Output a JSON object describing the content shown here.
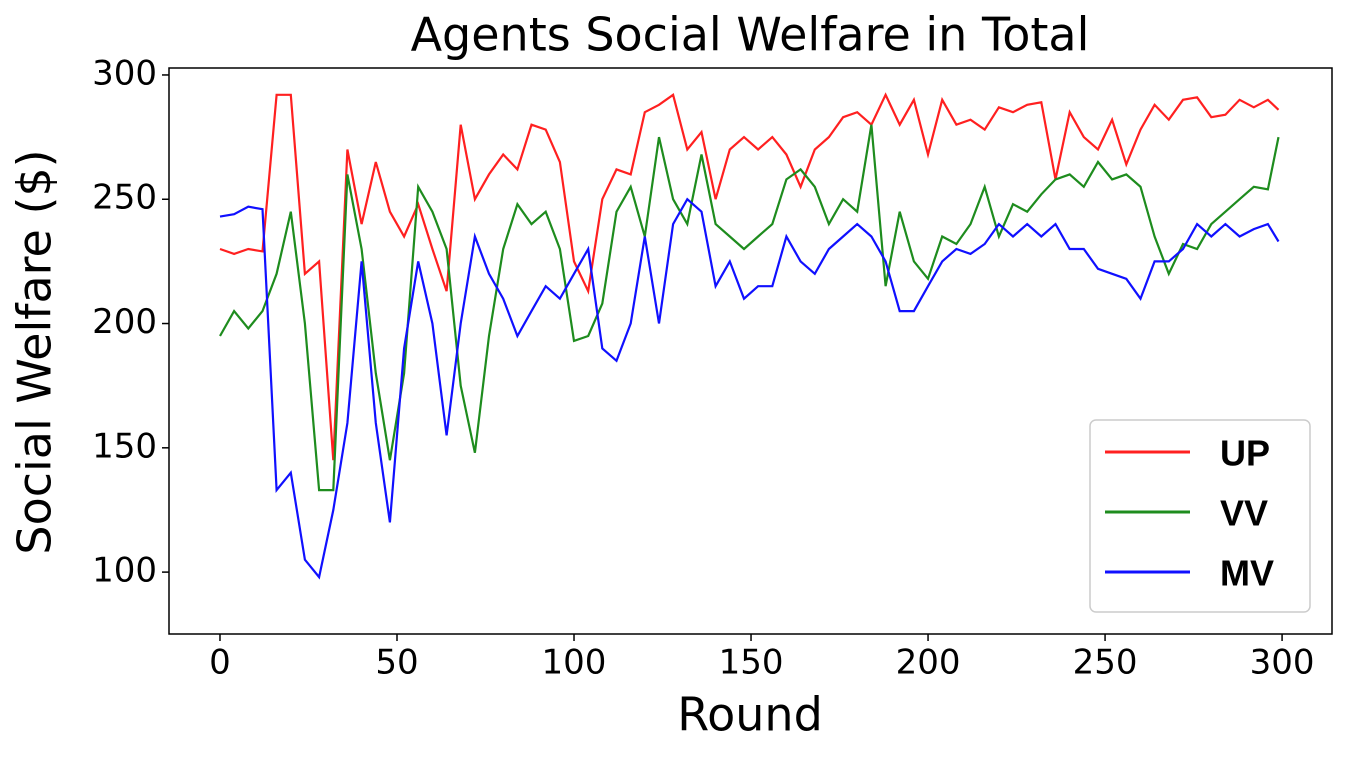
{
  "chart_data": {
    "type": "line",
    "title": "Agents Social Welfare in Total",
    "xlabel": "Round",
    "ylabel": "Social Welfare ($)",
    "x": [
      0,
      4,
      8,
      12,
      16,
      20,
      24,
      28,
      32,
      36,
      40,
      44,
      48,
      52,
      56,
      60,
      64,
      68,
      72,
      76,
      80,
      84,
      88,
      92,
      96,
      100,
      104,
      108,
      112,
      116,
      120,
      124,
      128,
      132,
      136,
      140,
      144,
      148,
      152,
      156,
      160,
      164,
      168,
      172,
      176,
      180,
      184,
      188,
      192,
      196,
      200,
      204,
      208,
      212,
      216,
      220,
      224,
      228,
      232,
      236,
      240,
      244,
      248,
      252,
      256,
      260,
      264,
      268,
      272,
      276,
      280,
      284,
      288,
      292,
      296,
      299
    ],
    "series": [
      {
        "name": "UP",
        "color": "#ff2020",
        "values": [
          230,
          228,
          230,
          229,
          292,
          292,
          220,
          225,
          145,
          270,
          240,
          265,
          245,
          235,
          248,
          230,
          213,
          280,
          250,
          260,
          268,
          262,
          280,
          278,
          265,
          225,
          213,
          250,
          262,
          260,
          285,
          288,
          292,
          270,
          277,
          250,
          270,
          275,
          270,
          275,
          268,
          255,
          270,
          275,
          283,
          285,
          280,
          292,
          280,
          290,
          268,
          290,
          280,
          282,
          278,
          287,
          285,
          288,
          289,
          258,
          285,
          275,
          270,
          282,
          264,
          278,
          288,
          282,
          290,
          291,
          283,
          284,
          290,
          287,
          290,
          286
        ]
      },
      {
        "name": "VV",
        "color": "#1e8c1e",
        "values": [
          195,
          205,
          198,
          205,
          220,
          245,
          200,
          133,
          133,
          260,
          230,
          180,
          145,
          180,
          255,
          245,
          230,
          175,
          148,
          195,
          230,
          248,
          240,
          245,
          230,
          193,
          195,
          208,
          245,
          255,
          235,
          275,
          250,
          240,
          268,
          240,
          235,
          230,
          235,
          240,
          258,
          262,
          255,
          240,
          250,
          245,
          280,
          215,
          245,
          225,
          218,
          235,
          232,
          240,
          255,
          235,
          248,
          245,
          252,
          258,
          260,
          255,
          265,
          258,
          260,
          255,
          235,
          220,
          232,
          230,
          240,
          245,
          250,
          255,
          254,
          275
        ]
      },
      {
        "name": "MV",
        "color": "#1010ff",
        "values": [
          243,
          244,
          247,
          246,
          133,
          140,
          105,
          98,
          125,
          160,
          225,
          160,
          120,
          190,
          225,
          200,
          155,
          200,
          235,
          220,
          210,
          195,
          205,
          215,
          210,
          220,
          230,
          190,
          185,
          200,
          235,
          200,
          240,
          250,
          245,
          215,
          225,
          210,
          215,
          215,
          235,
          225,
          220,
          230,
          235,
          240,
          235,
          225,
          205,
          205,
          215,
          225,
          230,
          228,
          232,
          240,
          235,
          240,
          235,
          240,
          230,
          230,
          222,
          220,
          218,
          210,
          225,
          225,
          230,
          240,
          235,
          240,
          235,
          238,
          240,
          233
        ]
      }
    ],
    "xlim": [
      -14.4,
      314.1
    ],
    "ylim": [
      75.1,
      302.8
    ],
    "xticks": [
      0,
      50,
      100,
      150,
      200,
      250,
      300
    ],
    "yticks": [
      100,
      150,
      200,
      250,
      300
    ],
    "grid": false,
    "legend": "lower right"
  }
}
